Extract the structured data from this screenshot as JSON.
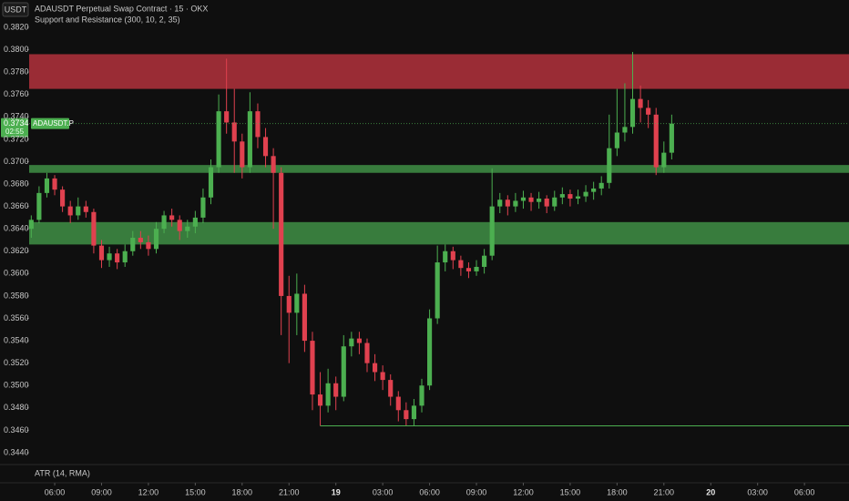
{
  "chart_data": {
    "type": "candlestick",
    "currency": "USDT",
    "title": "ADAUSDT Perpetual Swap Contract · 15 · OKX",
    "subtitle": "Support and Resistance (300, 10, 2, 35)",
    "indicator": "ATR (14, RMA)",
    "symbol_label": "ADAUSDT.P",
    "last_price": {
      "value": 0.3734,
      "label": "0.3734"
    },
    "countdown": "02:55",
    "colors": {
      "up": "#4caf50",
      "down": "#e0414f"
    },
    "open": [
      0.364,
      0.3648,
      0.3672,
      0.3685,
      0.3675,
      0.366,
      0.3652,
      0.366,
      0.3655,
      0.3625,
      0.3612,
      0.3618,
      0.361,
      0.362,
      0.3632,
      0.3628,
      0.3622,
      0.364,
      0.3652,
      0.3648,
      0.3638,
      0.3642,
      0.365,
      0.3668,
      0.3695,
      0.3745,
      0.3735,
      0.3718,
      0.3695,
      0.3745,
      0.3722,
      0.3705,
      0.369,
      0.358,
      0.3565,
      0.3582,
      0.354,
      0.3492,
      0.3482,
      0.3502,
      0.349,
      0.3535,
      0.3542,
      0.3538,
      0.352,
      0.3512,
      0.3505,
      0.349,
      0.3478,
      0.347,
      0.3482,
      0.35,
      0.356,
      0.361,
      0.362,
      0.3612,
      0.3605,
      0.3602,
      0.3606,
      0.3616,
      0.366,
      0.3666,
      0.366,
      0.3665,
      0.3668,
      0.3664,
      0.3667,
      0.366,
      0.3668,
      0.3671,
      0.3667,
      0.3669,
      0.3673,
      0.3676,
      0.3681,
      0.3712,
      0.3726,
      0.3731,
      0.3756,
      0.3748,
      0.3742,
      0.3695,
      0.3708
    ],
    "high": [
      0.3652,
      0.3678,
      0.369,
      0.3688,
      0.3678,
      0.3665,
      0.3668,
      0.3665,
      0.3658,
      0.363,
      0.3624,
      0.3622,
      0.3626,
      0.3638,
      0.3638,
      0.3634,
      0.3646,
      0.3656,
      0.3658,
      0.3652,
      0.3648,
      0.3656,
      0.3676,
      0.3702,
      0.376,
      0.3792,
      0.3765,
      0.3725,
      0.3762,
      0.3752,
      0.373,
      0.3712,
      0.3695,
      0.3598,
      0.36,
      0.359,
      0.3548,
      0.3512,
      0.3515,
      0.3508,
      0.3545,
      0.3548,
      0.3548,
      0.3542,
      0.3528,
      0.3518,
      0.351,
      0.3495,
      0.3485,
      0.3488,
      0.3506,
      0.3568,
      0.3625,
      0.3626,
      0.3624,
      0.3616,
      0.361,
      0.3612,
      0.3622,
      0.3694,
      0.3672,
      0.367,
      0.3672,
      0.3674,
      0.3672,
      0.3673,
      0.367,
      0.3674,
      0.3677,
      0.3675,
      0.3675,
      0.3679,
      0.3682,
      0.3687,
      0.3742,
      0.3765,
      0.377,
      0.3798,
      0.3768,
      0.3755,
      0.3748,
      0.3718,
      0.3742
    ],
    "low": [
      0.3632,
      0.3645,
      0.3668,
      0.367,
      0.3655,
      0.3645,
      0.3648,
      0.365,
      0.3618,
      0.3605,
      0.3606,
      0.3604,
      0.3606,
      0.3616,
      0.3622,
      0.3616,
      0.3618,
      0.3636,
      0.3642,
      0.363,
      0.3632,
      0.3636,
      0.3645,
      0.3662,
      0.369,
      0.3725,
      0.369,
      0.3685,
      0.369,
      0.3712,
      0.3695,
      0.364,
      0.3545,
      0.352,
      0.3545,
      0.353,
      0.3478,
      0.3464,
      0.3476,
      0.3478,
      0.3486,
      0.3526,
      0.3528,
      0.3512,
      0.3504,
      0.3496,
      0.3482,
      0.3468,
      0.3464,
      0.3464,
      0.3476,
      0.3496,
      0.3555,
      0.3602,
      0.3604,
      0.3598,
      0.3596,
      0.3598,
      0.36,
      0.3612,
      0.3654,
      0.3652,
      0.3655,
      0.3658,
      0.3656,
      0.3658,
      0.3654,
      0.3656,
      0.3662,
      0.366,
      0.3662,
      0.3664,
      0.3666,
      0.367,
      0.3676,
      0.3705,
      0.3718,
      0.3725,
      0.3735,
      0.373,
      0.3688,
      0.369,
      0.3702
    ],
    "close": [
      0.3648,
      0.3672,
      0.3685,
      0.3675,
      0.366,
      0.3652,
      0.366,
      0.3655,
      0.3625,
      0.3612,
      0.3618,
      0.361,
      0.362,
      0.3632,
      0.3628,
      0.3622,
      0.364,
      0.3652,
      0.3648,
      0.3638,
      0.3642,
      0.365,
      0.3668,
      0.3695,
      0.3745,
      0.3735,
      0.3718,
      0.3695,
      0.3745,
      0.3722,
      0.3705,
      0.369,
      0.358,
      0.3565,
      0.3582,
      0.354,
      0.3492,
      0.3482,
      0.3502,
      0.349,
      0.3535,
      0.3542,
      0.3538,
      0.352,
      0.3512,
      0.3505,
      0.349,
      0.3478,
      0.347,
      0.3482,
      0.35,
      0.356,
      0.361,
      0.362,
      0.3612,
      0.3605,
      0.3602,
      0.3606,
      0.3616,
      0.366,
      0.3666,
      0.366,
      0.3665,
      0.3668,
      0.3664,
      0.3667,
      0.366,
      0.3668,
      0.3671,
      0.3667,
      0.3669,
      0.3673,
      0.3676,
      0.3681,
      0.3712,
      0.3726,
      0.3731,
      0.3756,
      0.3748,
      0.3742,
      0.3695,
      0.3708,
      0.3734
    ],
    "xlim": [
      -0.27,
      104.7
    ],
    "xticks": [
      {
        "value": 3,
        "label": "06:00"
      },
      {
        "value": 9,
        "label": "09:00"
      },
      {
        "value": 15,
        "label": "12:00"
      },
      {
        "value": 21,
        "label": "15:00"
      },
      {
        "value": 27,
        "label": "18:00"
      },
      {
        "value": 33,
        "label": "21:00"
      },
      {
        "value": 39,
        "label": "19"
      },
      {
        "value": 45,
        "label": "03:00"
      },
      {
        "value": 51,
        "label": "06:00"
      },
      {
        "value": 57,
        "label": "09:00"
      },
      {
        "value": 63,
        "label": "12:00"
      },
      {
        "value": 69,
        "label": "15:00"
      },
      {
        "value": 75,
        "label": "18:00"
      },
      {
        "value": 81,
        "label": "21:00"
      },
      {
        "value": 87,
        "label": "20"
      },
      {
        "value": 93,
        "label": "03:00"
      },
      {
        "value": 99,
        "label": "06:00"
      }
    ],
    "ylim": [
      0.34294,
      0.38444
    ],
    "yticks": [
      {
        "value": 0.344,
        "label": "0.3440"
      },
      {
        "value": 0.346,
        "label": "0.3460"
      },
      {
        "value": 0.348,
        "label": "0.3480"
      },
      {
        "value": 0.35,
        "label": "0.3500"
      },
      {
        "value": 0.352,
        "label": "0.3520"
      },
      {
        "value": 0.354,
        "label": "0.3540"
      },
      {
        "value": 0.356,
        "label": "0.3560"
      },
      {
        "value": 0.358,
        "label": "0.3580"
      },
      {
        "value": 0.36,
        "label": "0.3600"
      },
      {
        "value": 0.362,
        "label": "0.3620"
      },
      {
        "value": 0.364,
        "label": "0.3640"
      },
      {
        "value": 0.366,
        "label": "0.3660"
      },
      {
        "value": 0.368,
        "label": "0.3680"
      },
      {
        "value": 0.37,
        "label": "0.3700"
      },
      {
        "value": 0.372,
        "label": "0.3720"
      },
      {
        "value": 0.374,
        "label": "0.3740"
      },
      {
        "value": 0.376,
        "label": "0.3760"
      },
      {
        "value": 0.378,
        "label": "0.3780"
      },
      {
        "value": 0.38,
        "label": "0.3800"
      },
      {
        "value": 0.382,
        "label": "0.3820"
      }
    ],
    "zones": [
      {
        "low": 0.3765,
        "high": 0.3796,
        "color": "#b3313c"
      },
      {
        "low": 0.369,
        "high": 0.3697,
        "color": "#3f8f45"
      },
      {
        "low": 0.3626,
        "high": 0.3646,
        "color": "#3f8f45"
      }
    ],
    "support_line": {
      "value": 0.3464,
      "color": "#4caf50"
    }
  }
}
